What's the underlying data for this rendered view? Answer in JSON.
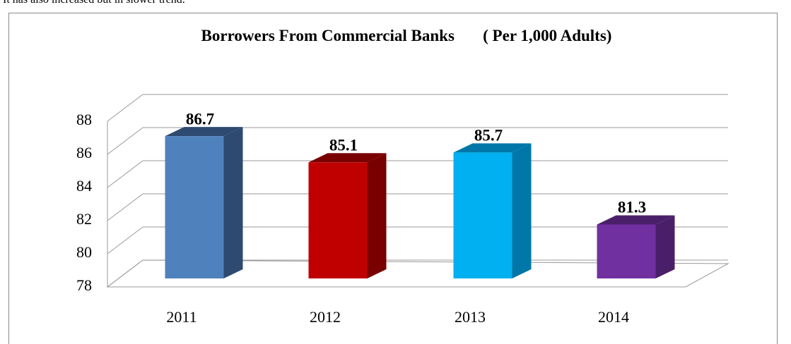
{
  "context_text": "It has also increased but in slower trend.",
  "chart_data": {
    "type": "bar3d",
    "title": "Borrowers From Commercial Banks       ( Per 1,000 Adults)",
    "categories": [
      "2011",
      "2012",
      "2013",
      "2014"
    ],
    "values": [
      86.7,
      85.1,
      85.7,
      81.3
    ],
    "colors": [
      "#4f81bd",
      "#c00000",
      "#00b0f0",
      "#7030a0"
    ],
    "side_colors": [
      "#2e4a70",
      "#7a0000",
      "#0077a8",
      "#4a1f6a"
    ],
    "ylim": [
      78,
      88
    ],
    "yticks": [
      78,
      80,
      82,
      84,
      86,
      88
    ],
    "grid": true
  }
}
